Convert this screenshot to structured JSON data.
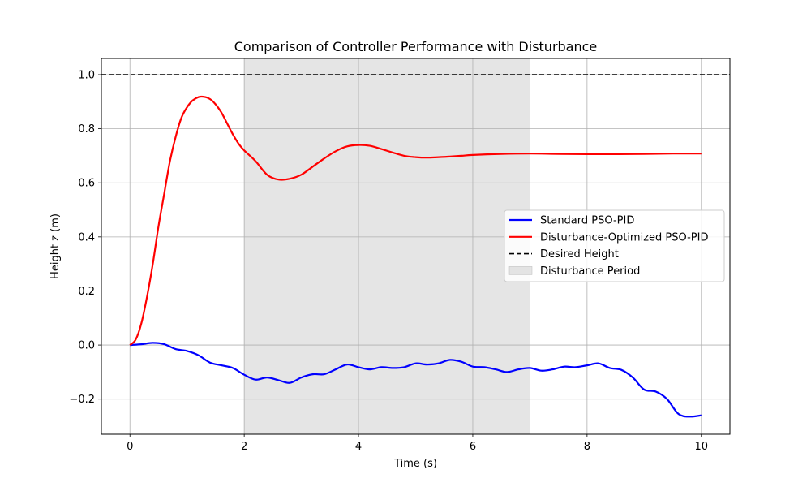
{
  "chart_data": {
    "type": "line",
    "title": "Comparison of Controller Performance with Disturbance",
    "xlabel": "Time (s)",
    "ylabel": "Height z (m)",
    "xlim": [
      -0.5,
      10.5
    ],
    "ylim": [
      -0.33,
      1.06
    ],
    "xticks": [
      0,
      2,
      4,
      6,
      8,
      10
    ],
    "yticks": [
      -0.2,
      0.0,
      0.2,
      0.4,
      0.6,
      0.8,
      1.0
    ],
    "xtick_labels": [
      "0",
      "2",
      "4",
      "6",
      "8",
      "10"
    ],
    "ytick_labels": [
      "−0.2",
      "0.0",
      "0.2",
      "0.4",
      "0.6",
      "0.8",
      "1.0"
    ],
    "grid": true,
    "legend_position": "center-right",
    "series": [
      {
        "name": "Standard PSO-PID",
        "color": "#0000ff",
        "style": "solid",
        "x": [
          0,
          0.2,
          0.4,
          0.6,
          0.8,
          1.0,
          1.2,
          1.4,
          1.6,
          1.8,
          2.0,
          2.2,
          2.4,
          2.6,
          2.8,
          3.0,
          3.2,
          3.4,
          3.6,
          3.8,
          4.0,
          4.2,
          4.4,
          4.6,
          4.8,
          5.0,
          5.2,
          5.4,
          5.6,
          5.8,
          6.0,
          6.2,
          6.4,
          6.6,
          6.8,
          7.0,
          7.2,
          7.4,
          7.6,
          7.8,
          8.0,
          8.2,
          8.4,
          8.6,
          8.8,
          9.0,
          9.2,
          9.4,
          9.6,
          9.8,
          10.0
        ],
        "values": [
          0.0,
          0.003,
          0.008,
          0.003,
          -0.015,
          -0.022,
          -0.038,
          -0.065,
          -0.075,
          -0.085,
          -0.11,
          -0.128,
          -0.12,
          -0.13,
          -0.14,
          -0.12,
          -0.108,
          -0.108,
          -0.09,
          -0.072,
          -0.082,
          -0.09,
          -0.082,
          -0.085,
          -0.082,
          -0.068,
          -0.072,
          -0.068,
          -0.055,
          -0.062,
          -0.08,
          -0.082,
          -0.09,
          -0.1,
          -0.09,
          -0.085,
          -0.095,
          -0.09,
          -0.08,
          -0.082,
          -0.075,
          -0.068,
          -0.085,
          -0.092,
          -0.12,
          -0.165,
          -0.172,
          -0.2,
          -0.255,
          -0.265,
          -0.26
        ]
      },
      {
        "name": "Disturbance-Optimized PSO-PID",
        "color": "#ff0000",
        "style": "solid",
        "x": [
          0,
          0.1,
          0.2,
          0.3,
          0.4,
          0.5,
          0.6,
          0.7,
          0.8,
          0.9,
          1.0,
          1.1,
          1.2,
          1.3,
          1.4,
          1.5,
          1.6,
          1.7,
          1.8,
          1.9,
          2.0,
          2.2,
          2.4,
          2.6,
          2.8,
          3.0,
          3.2,
          3.4,
          3.6,
          3.8,
          4.0,
          4.2,
          4.4,
          4.6,
          4.8,
          5.0,
          5.2,
          5.4,
          5.6,
          5.8,
          6.0,
          6.5,
          7.0,
          7.5,
          8.0,
          8.5,
          9.0,
          9.5,
          10.0
        ],
        "values": [
          0.0,
          0.02,
          0.08,
          0.18,
          0.3,
          0.44,
          0.56,
          0.68,
          0.77,
          0.84,
          0.88,
          0.905,
          0.917,
          0.918,
          0.91,
          0.89,
          0.86,
          0.82,
          0.78,
          0.745,
          0.72,
          0.68,
          0.63,
          0.612,
          0.615,
          0.63,
          0.66,
          0.69,
          0.717,
          0.735,
          0.74,
          0.737,
          0.725,
          0.712,
          0.7,
          0.695,
          0.693,
          0.695,
          0.697,
          0.7,
          0.703,
          0.707,
          0.708,
          0.707,
          0.706,
          0.706,
          0.707,
          0.708,
          0.708
        ]
      },
      {
        "name": "Desired Height",
        "color": "#000000",
        "style": "dashed",
        "x": [
          -0.5,
          10.5
        ],
        "values": [
          1.0,
          1.0
        ]
      }
    ],
    "shaded_regions": [
      {
        "name": "Disturbance Period",
        "x_start": 2,
        "x_end": 7,
        "color": "#d3d3d3"
      }
    ],
    "legend": [
      {
        "label": "Standard PSO-PID",
        "color": "#0000ff",
        "kind": "line"
      },
      {
        "label": "Disturbance-Optimized PSO-PID",
        "color": "#ff0000",
        "kind": "line"
      },
      {
        "label": "Desired Height",
        "color": "#000000",
        "kind": "dashed"
      },
      {
        "label": "Disturbance Period",
        "color": "#d3d3d3",
        "kind": "patch"
      }
    ]
  }
}
